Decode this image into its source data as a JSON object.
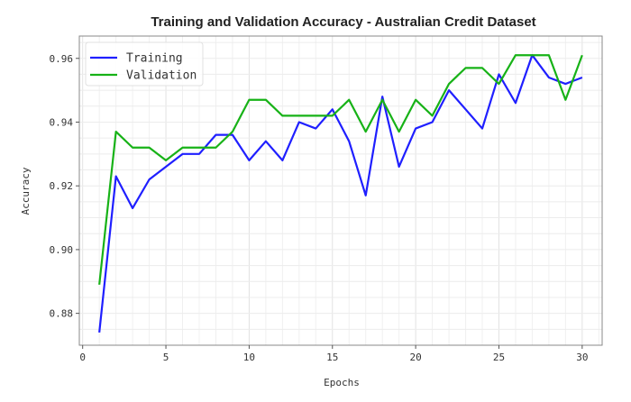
{
  "chart_data": {
    "type": "line",
    "title": "Training and Validation Accuracy - Australian Credit Dataset",
    "xlabel": "Epochs",
    "ylabel": "Accuracy",
    "xlim": [
      -0.2,
      31.2
    ],
    "ylim": [
      0.87,
      0.967
    ],
    "xticks": [
      0,
      5,
      10,
      15,
      20,
      25,
      30
    ],
    "yticks": [
      0.88,
      0.9,
      0.92,
      0.94,
      0.96
    ],
    "ytick_labels": [
      "0.88",
      "0.90",
      "0.92",
      "0.94",
      "0.96"
    ],
    "grid": true,
    "legend_position": "top-left",
    "x": [
      1,
      2,
      3,
      4,
      5,
      6,
      7,
      8,
      9,
      10,
      11,
      12,
      13,
      14,
      15,
      16,
      17,
      18,
      19,
      20,
      21,
      22,
      23,
      24,
      25,
      26,
      27,
      28,
      29,
      30
    ],
    "series": [
      {
        "name": "Training",
        "color": "#1f1fff",
        "values": [
          0.874,
          0.923,
          0.913,
          0.922,
          0.926,
          0.93,
          0.93,
          0.936,
          0.936,
          0.928,
          0.934,
          0.928,
          0.94,
          0.938,
          0.944,
          0.934,
          0.917,
          0.948,
          0.926,
          0.938,
          0.94,
          0.95,
          0.944,
          0.938,
          0.955,
          0.946,
          0.961,
          0.954,
          0.952,
          0.954
        ]
      },
      {
        "name": "Validation",
        "color": "#17b217",
        "values": [
          0.889,
          0.937,
          0.932,
          0.932,
          0.928,
          0.932,
          0.932,
          0.932,
          0.937,
          0.947,
          0.947,
          0.942,
          0.942,
          0.942,
          0.942,
          0.947,
          0.937,
          0.947,
          0.937,
          0.947,
          0.942,
          0.952,
          0.957,
          0.957,
          0.952,
          0.961,
          0.961,
          0.961,
          0.947,
          0.961
        ]
      }
    ]
  }
}
